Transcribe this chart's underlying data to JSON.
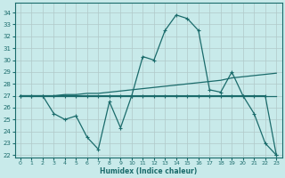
{
  "xlabel": "Humidex (Indice chaleur)",
  "bg_color": "#c8eaea",
  "grid_color": "#b0c8c8",
  "line_color": "#1a6b6b",
  "xlim": [
    -0.5,
    23.5
  ],
  "ylim": [
    21.8,
    34.8
  ],
  "yticks": [
    22,
    23,
    24,
    25,
    26,
    27,
    28,
    29,
    30,
    31,
    32,
    33,
    34
  ],
  "xticks": [
    0,
    1,
    2,
    3,
    4,
    5,
    6,
    7,
    8,
    9,
    10,
    11,
    12,
    13,
    14,
    15,
    16,
    17,
    18,
    19,
    20,
    21,
    22,
    23
  ],
  "line1_y": [
    27,
    27,
    27,
    27,
    27,
    27,
    27,
    27,
    27,
    27,
    27,
    27,
    27,
    27,
    27,
    27,
    27,
    27,
    27,
    27,
    27,
    27,
    27,
    27
  ],
  "line2_y": [
    27,
    27,
    27,
    27,
    27.1,
    27.1,
    27.2,
    27.2,
    27.3,
    27.4,
    27.5,
    27.6,
    27.7,
    27.8,
    27.9,
    28.0,
    28.1,
    28.2,
    28.3,
    28.5,
    28.6,
    28.7,
    28.8,
    28.9
  ],
  "line3_y": [
    27,
    27,
    27,
    25.5,
    25.0,
    25.3,
    23.5,
    22.5,
    26.5,
    24.3,
    27.0,
    30.3,
    30.0,
    32.5,
    33.8,
    33.5,
    32.5,
    27.5,
    27.3,
    29.0,
    27.0,
    25.5,
    23.0,
    22.0
  ],
  "line4_y": [
    27,
    27,
    27,
    27,
    27,
    27,
    27,
    27,
    27,
    27,
    27,
    27,
    27,
    27,
    27,
    27,
    27,
    27,
    27,
    27,
    27,
    27,
    27,
    22.0
  ]
}
